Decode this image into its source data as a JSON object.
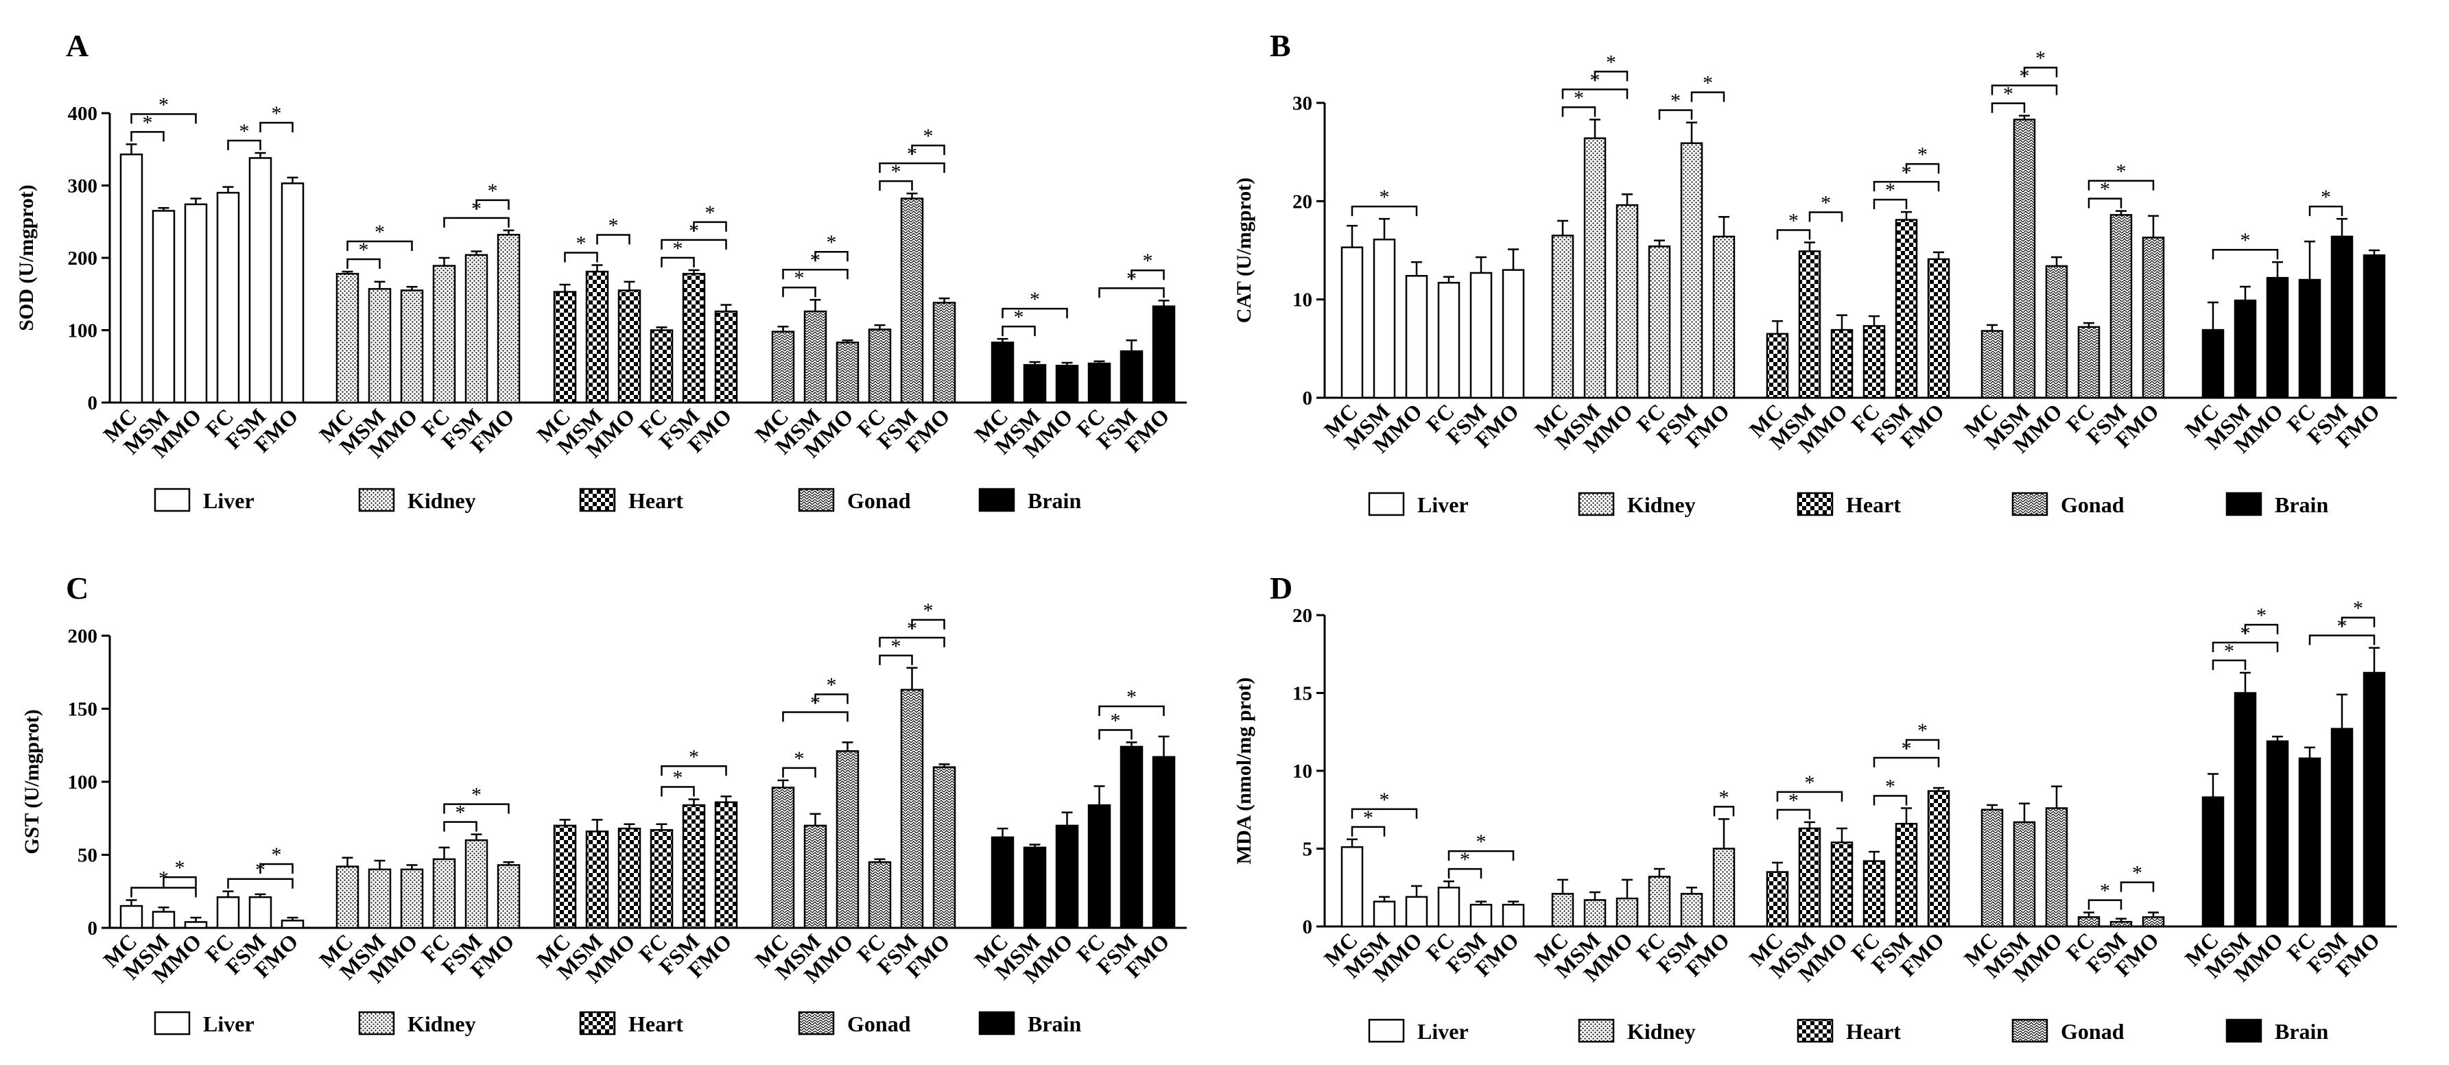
{
  "groups": [
    "MC",
    "MSM",
    "MMO",
    "FC",
    "FSM",
    "FMO"
  ],
  "tissues": [
    {
      "name": "Liver",
      "pattern": "pat-liver"
    },
    {
      "name": "Kidney",
      "pattern": "pat-kidney"
    },
    {
      "name": "Heart",
      "pattern": "pat-heart"
    },
    {
      "name": "Gonad",
      "pattern": "pat-gonad"
    },
    {
      "name": "Brain",
      "pattern": "pat-brain"
    }
  ],
  "colors": {
    "stroke": "#000000",
    "fill_dark": "#000000",
    "background": "#ffffff"
  },
  "chart_data": [
    {
      "panel": "A",
      "type": "bar",
      "ylabel": "SOD (U/mgprot)",
      "ylim": [
        0,
        400
      ],
      "yticks": [
        0,
        100,
        200,
        300,
        400
      ],
      "categories": [
        "MC",
        "MSM",
        "MMO",
        "FC",
        "FSM",
        "FMO"
      ],
      "series": [
        {
          "name": "Liver",
          "values": [
            343,
            265,
            274,
            290,
            338,
            303
          ],
          "errors": [
            14,
            4,
            8,
            8,
            7,
            8
          ]
        },
        {
          "name": "Kidney",
          "values": [
            178,
            157,
            155,
            189,
            204,
            232
          ],
          "errors": [
            3,
            10,
            5,
            11,
            5,
            6
          ]
        },
        {
          "name": "Heart",
          "values": [
            153,
            181,
            155,
            100,
            178,
            126
          ],
          "errors": [
            10,
            9,
            12,
            4,
            5,
            9
          ]
        },
        {
          "name": "Gonad",
          "values": [
            98,
            126,
            83,
            101,
            282,
            138
          ],
          "errors": [
            7,
            16,
            3,
            6,
            7,
            6
          ]
        },
        {
          "name": "Brain",
          "values": [
            83,
            52,
            51,
            54,
            71,
            133
          ],
          "errors": [
            5,
            4,
            4,
            3,
            15,
            8
          ]
        }
      ],
      "significance": [
        [
          0,
          0,
          1
        ],
        [
          0,
          0,
          2
        ],
        [
          0,
          3,
          4
        ],
        [
          0,
          4,
          5
        ],
        [
          1,
          0,
          1
        ],
        [
          1,
          0,
          2
        ],
        [
          1,
          3,
          5
        ],
        [
          1,
          4,
          5
        ],
        [
          2,
          0,
          1
        ],
        [
          2,
          1,
          2
        ],
        [
          2,
          3,
          4
        ],
        [
          2,
          3,
          5
        ],
        [
          2,
          4,
          5
        ],
        [
          3,
          0,
          1
        ],
        [
          3,
          0,
          2
        ],
        [
          3,
          1,
          2
        ],
        [
          3,
          3,
          4
        ],
        [
          3,
          3,
          5
        ],
        [
          3,
          4,
          5
        ],
        [
          4,
          0,
          1
        ],
        [
          4,
          0,
          2
        ],
        [
          4,
          3,
          5
        ],
        [
          4,
          4,
          5
        ]
      ]
    },
    {
      "panel": "B",
      "type": "bar",
      "ylabel": "CAT (U/mgprot)",
      "ylim": [
        0,
        30
      ],
      "yticks": [
        0,
        10,
        20,
        30
      ],
      "categories": [
        "MC",
        "MSM",
        "MMO",
        "FC",
        "FSM",
        "FMO"
      ],
      "series": [
        {
          "name": "Liver",
          "values": [
            15.3,
            16.1,
            12.4,
            11.7,
            12.7,
            13.0
          ],
          "errors": [
            2.2,
            2.1,
            1.4,
            0.6,
            1.6,
            2.1
          ]
        },
        {
          "name": "Kidney",
          "values": [
            16.5,
            26.4,
            19.6,
            15.4,
            25.9,
            16.4
          ],
          "errors": [
            1.5,
            1.9,
            1.1,
            0.6,
            2.1,
            2.0
          ]
        },
        {
          "name": "Heart",
          "values": [
            6.5,
            14.9,
            6.9,
            7.3,
            18.1,
            14.1
          ],
          "errors": [
            1.3,
            0.9,
            1.5,
            1.0,
            0.8,
            0.7
          ]
        },
        {
          "name": "Gonad",
          "values": [
            6.8,
            28.3,
            13.4,
            7.2,
            18.6,
            16.3
          ],
          "errors": [
            0.6,
            0.4,
            0.9,
            0.4,
            0.4,
            2.2
          ]
        },
        {
          "name": "Brain",
          "values": [
            6.9,
            9.9,
            12.2,
            12.0,
            16.4,
            14.5
          ],
          "errors": [
            2.8,
            1.4,
            1.6,
            3.9,
            1.8,
            0.5
          ]
        }
      ],
      "significance": [
        [
          0,
          0,
          2
        ],
        [
          1,
          0,
          1
        ],
        [
          1,
          0,
          2
        ],
        [
          1,
          1,
          2
        ],
        [
          1,
          3,
          4
        ],
        [
          1,
          4,
          5
        ],
        [
          2,
          0,
          1
        ],
        [
          2,
          1,
          2
        ],
        [
          2,
          3,
          4
        ],
        [
          2,
          3,
          5
        ],
        [
          2,
          4,
          5
        ],
        [
          3,
          0,
          1
        ],
        [
          3,
          0,
          2
        ],
        [
          3,
          1,
          2
        ],
        [
          3,
          3,
          4
        ],
        [
          3,
          3,
          5
        ],
        [
          4,
          0,
          2
        ],
        [
          4,
          3,
          4
        ]
      ]
    },
    {
      "panel": "C",
      "type": "bar",
      "ylabel": "GST (U/mgprot)",
      "ylim": [
        0,
        200
      ],
      "yticks": [
        0,
        50,
        100,
        150,
        200
      ],
      "categories": [
        "MC",
        "MSM",
        "MMO",
        "FC",
        "FSM",
        "FMO"
      ],
      "series": [
        {
          "name": "Liver",
          "values": [
            15,
            11,
            4,
            21,
            21,
            5
          ],
          "errors": [
            4,
            3,
            3,
            4,
            2,
            2
          ]
        },
        {
          "name": "Kidney",
          "values": [
            42,
            40,
            40,
            47,
            60,
            43
          ],
          "errors": [
            6,
            6,
            3,
            8,
            4,
            2
          ]
        },
        {
          "name": "Heart",
          "values": [
            70,
            66,
            68,
            67,
            84,
            86
          ],
          "errors": [
            4,
            8,
            3,
            4,
            4,
            4
          ]
        },
        {
          "name": "Gonad",
          "values": [
            96,
            70,
            121,
            45,
            163,
            110
          ],
          "errors": [
            5,
            8,
            6,
            2,
            15,
            2
          ]
        },
        {
          "name": "Brain",
          "values": [
            62,
            55,
            70,
            84,
            124,
            117
          ],
          "errors": [
            6,
            2,
            9,
            13,
            3,
            14
          ]
        }
      ],
      "significance": [
        [
          0,
          0,
          2
        ],
        [
          0,
          1,
          2
        ],
        [
          0,
          3,
          5
        ],
        [
          0,
          4,
          5
        ],
        [
          1,
          3,
          4
        ],
        [
          1,
          3,
          5
        ],
        [
          2,
          3,
          4
        ],
        [
          2,
          3,
          5
        ],
        [
          3,
          0,
          1
        ],
        [
          3,
          0,
          2
        ],
        [
          3,
          1,
          2
        ],
        [
          3,
          3,
          4
        ],
        [
          3,
          3,
          5
        ],
        [
          3,
          4,
          5
        ],
        [
          4,
          3,
          4
        ],
        [
          4,
          3,
          5
        ]
      ]
    },
    {
      "panel": "D",
      "type": "bar",
      "ylabel": "MDA (nmol/mg prot)",
      "ylim": [
        0,
        20
      ],
      "yticks": [
        0,
        5,
        10,
        15,
        20
      ],
      "categories": [
        "MC",
        "MSM",
        "MMO",
        "FC",
        "FSM",
        "FMO"
      ],
      "series": [
        {
          "name": "Liver",
          "values": [
            5.1,
            1.6,
            1.9,
            2.5,
            1.4,
            1.4
          ],
          "errors": [
            0.5,
            0.3,
            0.7,
            0.4,
            0.2,
            0.2
          ]
        },
        {
          "name": "Kidney",
          "values": [
            2.1,
            1.7,
            1.8,
            3.2,
            2.1,
            5.0
          ],
          "errors": [
            0.9,
            0.5,
            1.2,
            0.5,
            0.4,
            1.9
          ]
        },
        {
          "name": "Heart",
          "values": [
            3.5,
            6.3,
            5.4,
            4.2,
            6.6,
            8.7
          ],
          "errors": [
            0.6,
            0.4,
            0.9,
            0.6,
            1.0,
            0.2
          ]
        },
        {
          "name": "Gonad",
          "values": [
            7.5,
            6.7,
            7.6,
            0.6,
            0.3,
            0.6
          ],
          "errors": [
            0.3,
            1.2,
            1.4,
            0.3,
            0.2,
            0.3
          ]
        },
        {
          "name": "Brain",
          "values": [
            8.3,
            15.0,
            11.9,
            10.8,
            12.7,
            16.3
          ],
          "errors": [
            1.5,
            1.3,
            0.3,
            0.7,
            2.2,
            1.6
          ]
        }
      ],
      "significance": [
        [
          0,
          0,
          1
        ],
        [
          0,
          0,
          2
        ],
        [
          0,
          3,
          4
        ],
        [
          0,
          3,
          5
        ],
        [
          1,
          5,
          5
        ],
        [
          2,
          0,
          1
        ],
        [
          2,
          0,
          2
        ],
        [
          2,
          3,
          4
        ],
        [
          2,
          3,
          5
        ],
        [
          2,
          4,
          5
        ],
        [
          3,
          3,
          4
        ],
        [
          3,
          4,
          5
        ],
        [
          4,
          0,
          1
        ],
        [
          4,
          0,
          2
        ],
        [
          4,
          1,
          2
        ],
        [
          4,
          3,
          5
        ],
        [
          4,
          4,
          5
        ]
      ]
    }
  ]
}
